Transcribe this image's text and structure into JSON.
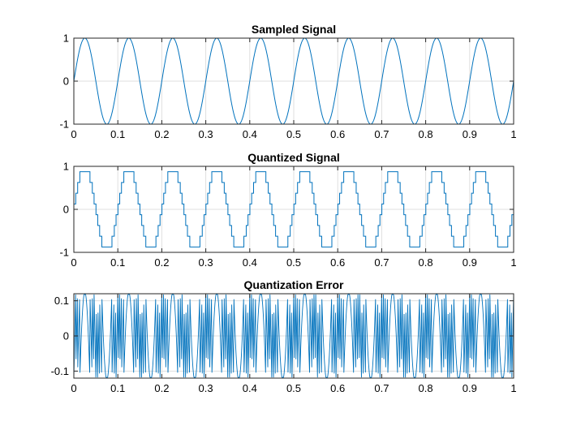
{
  "colors": {
    "line": "#0072BD",
    "grid": "#dfdfdf",
    "axis": "#262626"
  },
  "chart_data": [
    {
      "type": "line",
      "title": "Sampled Signal",
      "xlim": [
        0,
        1
      ],
      "ylim": [
        -1,
        1
      ],
      "grid": true,
      "x_ticks": [
        0,
        0.1,
        0.2,
        0.3,
        0.4,
        0.5,
        0.6,
        0.7,
        0.8,
        0.9,
        1
      ],
      "x_tick_labels": [
        "0",
        "0.1",
        "0.2",
        "0.3",
        "0.4",
        "0.5",
        "0.6",
        "0.7",
        "0.8",
        "0.9",
        "1"
      ],
      "y_ticks": [
        -1,
        0,
        1
      ],
      "y_tick_labels": [
        "-1",
        "0",
        "1"
      ],
      "signal": {
        "kind": "sine",
        "frequency_hz": 10,
        "amplitude": 1,
        "phase": 0
      }
    },
    {
      "type": "line",
      "title": "Quantized Signal",
      "xlim": [
        0,
        1
      ],
      "ylim": [
        -1,
        1
      ],
      "grid": true,
      "x_ticks": [
        0,
        0.1,
        0.2,
        0.3,
        0.4,
        0.5,
        0.6,
        0.7,
        0.8,
        0.9,
        1
      ],
      "x_tick_labels": [
        "0",
        "0.1",
        "0.2",
        "0.3",
        "0.4",
        "0.5",
        "0.6",
        "0.7",
        "0.8",
        "0.9",
        "1"
      ],
      "y_ticks": [
        -1,
        0,
        1
      ],
      "y_tick_labels": [
        "-1",
        "0",
        "1"
      ],
      "signal": {
        "kind": "quantized-sine",
        "frequency_hz": 10,
        "amplitude": 1,
        "levels": [
          -0.875,
          -0.625,
          -0.375,
          -0.125,
          0.125,
          0.375,
          0.625,
          0.875
        ],
        "step": 0.25
      }
    },
    {
      "type": "line",
      "title": "Quantization Error",
      "xlim": [
        0,
        1
      ],
      "ylim": [
        -0.12,
        0.12
      ],
      "grid": true,
      "x_ticks": [
        0,
        0.1,
        0.2,
        0.3,
        0.4,
        0.5,
        0.6,
        0.7,
        0.8,
        0.9,
        1
      ],
      "x_tick_labels": [
        "0",
        "0.1",
        "0.2",
        "0.3",
        "0.4",
        "0.5",
        "0.6",
        "0.7",
        "0.8",
        "0.9",
        "1"
      ],
      "y_ticks": [
        -0.1,
        0,
        0.1
      ],
      "y_tick_labels": [
        "-0.1",
        "0",
        "0.1"
      ],
      "signal": {
        "kind": "quantization-error",
        "frequency_hz": 10,
        "amplitude": 1,
        "step": 0.25,
        "peak": 0.125
      }
    }
  ]
}
